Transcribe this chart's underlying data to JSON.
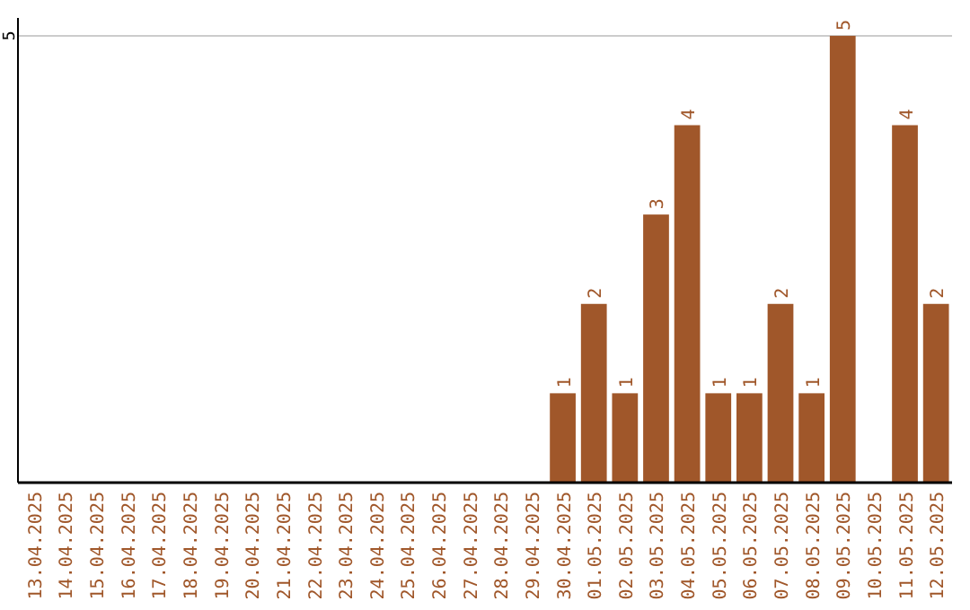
{
  "chart_data": {
    "type": "bar",
    "categories": [
      "13.04.2025",
      "14.04.2025",
      "15.04.2025",
      "16.04.2025",
      "17.04.2025",
      "18.04.2025",
      "19.04.2025",
      "20.04.2025",
      "21.04.2025",
      "22.04.2025",
      "23.04.2025",
      "24.04.2025",
      "25.04.2025",
      "26.04.2025",
      "27.04.2025",
      "28.04.2025",
      "29.04.2025",
      "30.04.2025",
      "01.05.2025",
      "02.05.2025",
      "03.05.2025",
      "04.05.2025",
      "05.05.2025",
      "06.05.2025",
      "07.05.2025",
      "08.05.2025",
      "09.05.2025",
      "10.05.2025",
      "11.05.2025",
      "12.05.2025"
    ],
    "values": [
      null,
      null,
      null,
      null,
      null,
      null,
      null,
      null,
      null,
      null,
      null,
      null,
      null,
      null,
      null,
      null,
      null,
      1,
      2,
      1,
      3,
      4,
      1,
      1,
      2,
      1,
      5,
      null,
      4,
      2
    ],
    "color": "#a0572a",
    "ylim": [
      0,
      5.2
    ],
    "yticks": [
      5
    ],
    "grid": "y",
    "data_labels": true
  }
}
